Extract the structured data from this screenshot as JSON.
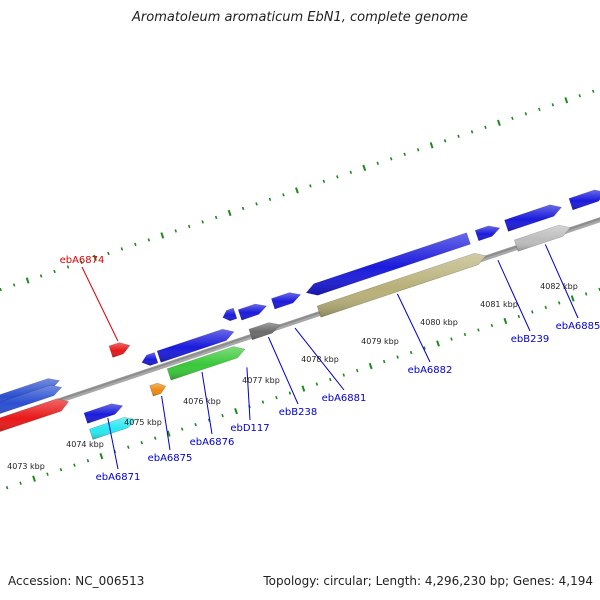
{
  "title": "Aromatoleum aromaticum EbN1, complete genome",
  "footer": {
    "accession": "Accession: NC_006513",
    "stats": "Topology: circular; Length: 4,296,230 bp; Genes: 4,194"
  },
  "colors": {
    "backbone": "#8c8c8c",
    "ticks": "#1e8a1e",
    "label_default": "#0000cc",
    "label_highlight": "#dd0000"
  },
  "scale_labels": [
    "4073 kbp",
    "4074 kbp",
    "4075 kbp",
    "4076 kbp",
    "4077 kbp",
    "4078 kbp",
    "4079 kbp",
    "4080 kbp",
    "4081 kbp",
    "4082 kbp"
  ],
  "genes": [
    {
      "label": "",
      "color": "#2a4fd0",
      "strand": "forward"
    },
    {
      "label": "",
      "color": "#2a4fd0",
      "strand": "forward"
    },
    {
      "label": "",
      "color": "#e81818",
      "strand": "forward"
    },
    {
      "label": "ebA6871",
      "color": "#1a1adc",
      "strand": "forward"
    },
    {
      "label": "",
      "color": "#28e8f0",
      "strand": "forward"
    },
    {
      "label": "ebA6874",
      "color": "#e81818",
      "strand": "forward"
    },
    {
      "label": "ebA6875",
      "color": "#ee8a10",
      "strand": "forward"
    },
    {
      "label": "",
      "color": "#1a1adc",
      "strand": "reverse"
    },
    {
      "label": "ebA6876",
      "color": "#1a1adc",
      "strand": "forward"
    },
    {
      "label": "",
      "color": "#38c838",
      "strand": "forward"
    },
    {
      "label": "ebD117",
      "color": "#1a1adc",
      "strand": "reverse"
    },
    {
      "label": "",
      "color": "#1a1adc",
      "strand": "forward"
    },
    {
      "label": "ebB238",
      "color": "#6a6a6a",
      "strand": "forward"
    },
    {
      "label": "ebA6881",
      "color": "#1a1adc",
      "strand": "forward"
    },
    {
      "label": "ebA6882",
      "color": "#1a1adc",
      "strand": "reverse"
    },
    {
      "label": "",
      "color": "#b8b078",
      "strand": "forward"
    },
    {
      "label": "ebB239",
      "color": "#1a1adc",
      "strand": "forward"
    },
    {
      "label": "ebA6885",
      "color": "#1a1adc",
      "strand": "forward"
    },
    {
      "label": "",
      "color": "#bdbdbd",
      "strand": "forward"
    },
    {
      "label": "",
      "color": "#1a1adc",
      "strand": "forward"
    }
  ]
}
